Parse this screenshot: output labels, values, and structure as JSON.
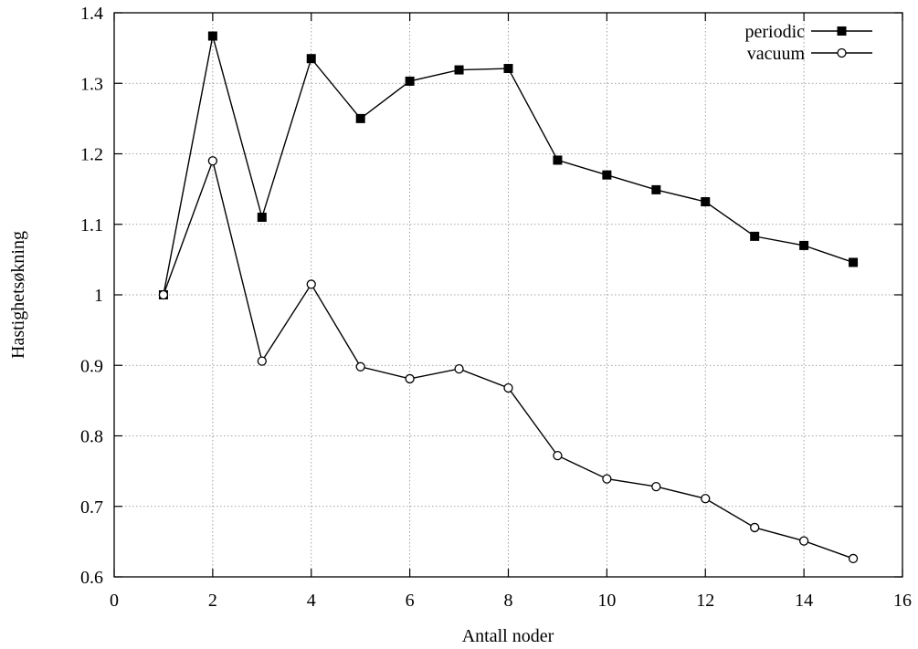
{
  "chart_data": {
    "type": "line",
    "xlabel": "Antall noder",
    "ylabel": "Hastighetsøkning",
    "xlim": [
      0,
      16
    ],
    "ylim": [
      0.6,
      1.4
    ],
    "xticks": [
      0,
      2,
      4,
      6,
      8,
      10,
      12,
      14,
      16
    ],
    "xtick_labels": [
      "0",
      "2",
      "4",
      "6",
      "8",
      "10",
      "12",
      "14",
      "16"
    ],
    "yticks": [
      0.6,
      0.7,
      0.8,
      0.9,
      1.0,
      1.1,
      1.2,
      1.3,
      1.4
    ],
    "ytick_labels": [
      "0.6",
      "0.7",
      "0.8",
      "0.9",
      "1",
      "1.1",
      "1.2",
      "1.3",
      "1.4"
    ],
    "grid": true,
    "legend_position": "top-right",
    "x": [
      1,
      2,
      3,
      4,
      5,
      6,
      7,
      8,
      9,
      10,
      11,
      12,
      13,
      14,
      15
    ],
    "series": [
      {
        "name": "periodic",
        "marker": "filled-square",
        "color": "#000000",
        "values": [
          1.0,
          1.367,
          1.11,
          1.335,
          1.25,
          1.303,
          1.319,
          1.321,
          1.191,
          1.17,
          1.149,
          1.132,
          1.083,
          1.07,
          1.046
        ]
      },
      {
        "name": "vacuum",
        "marker": "open-circle",
        "color": "#000000",
        "values": [
          1.0,
          1.19,
          0.906,
          1.015,
          0.898,
          0.881,
          0.895,
          0.868,
          0.772,
          0.739,
          0.728,
          0.711,
          0.67,
          0.651,
          0.626
        ]
      }
    ]
  }
}
